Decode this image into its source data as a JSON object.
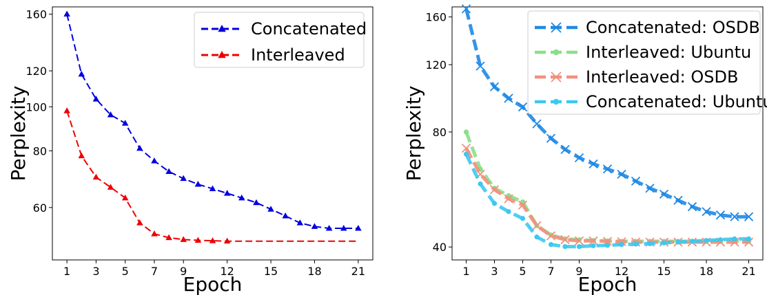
{
  "chart_data": [
    {
      "type": "line",
      "xlabel": "Epoch",
      "ylabel": "Perplexity",
      "yscale": "log",
      "xlim": [
        0.0,
        22.0
      ],
      "ylim": [
        46,
        166
      ],
      "xticks": [
        1,
        3,
        5,
        7,
        9,
        12,
        15,
        18,
        21
      ],
      "yticks": [
        60,
        80,
        100,
        120,
        160
      ],
      "legend_position": "top-right",
      "series": [
        {
          "name": "Concatenated",
          "color": "#0000dd",
          "marker": "triangle",
          "x": [
            1,
            2,
            3,
            4,
            5,
            6,
            7,
            8,
            9,
            10,
            11,
            12,
            13,
            14,
            15,
            16,
            17,
            18,
            19,
            20,
            21
          ],
          "values": [
            160,
            118,
            104,
            96,
            92,
            81,
            76,
            72,
            69.5,
            67.5,
            66,
            64.5,
            63,
            61.5,
            59.5,
            57.5,
            55.5,
            54.5,
            54,
            54,
            54
          ]
        },
        {
          "name": "Interleaved",
          "color": "#ee0000",
          "marker": "triangle",
          "x": [
            1,
            2,
            3,
            4,
            5,
            6,
            7,
            8,
            9,
            10,
            11,
            12,
            13,
            14,
            15,
            16,
            17,
            18,
            19,
            20,
            21
          ],
          "values": [
            98,
            78,
            70,
            66.5,
            63,
            55.5,
            52.5,
            51.5,
            51,
            50.8,
            50.7,
            50.6,
            50.6,
            50.6,
            50.6,
            50.6,
            50.6,
            50.6,
            50.6,
            50.6,
            50.6
          ]
        }
      ]
    },
    {
      "type": "line",
      "xlabel": "Epoch",
      "ylabel": "Perplexity",
      "yscale": "log",
      "xlim": [
        0.0,
        22.0
      ],
      "ylim": [
        37,
        170
      ],
      "xticks": [
        1,
        3,
        5,
        7,
        9,
        12,
        15,
        18,
        21
      ],
      "yticks": [
        40,
        80,
        120,
        160
      ],
      "legend_position": "top-right",
      "series": [
        {
          "name": "Concatenated: OSDB",
          "color": "#1e88e5",
          "marker": "x",
          "x": [
            1,
            2,
            3,
            4,
            5,
            6,
            7,
            8,
            9,
            10,
            11,
            12,
            13,
            14,
            15,
            16,
            17,
            18,
            19,
            20,
            21
          ],
          "values": [
            168,
            119,
            105,
            98,
            93,
            84,
            77,
            72,
            68.5,
            66,
            64,
            62,
            59.5,
            57,
            55,
            53,
            51,
            49.5,
            48.5,
            48,
            48
          ]
        },
        {
          "name": "Interleaved: Ubuntu",
          "color": "#88e088",
          "marker": "dot",
          "x": [
            1,
            2,
            3,
            4,
            5,
            6,
            7,
            8,
            9,
            10,
            11,
            12,
            13,
            14,
            15,
            16,
            17,
            18,
            19,
            20,
            21
          ],
          "values": [
            80,
            64,
            57,
            54.5,
            52.5,
            45.5,
            43,
            42,
            41.8,
            41.6,
            41.5,
            41.4,
            41.4,
            41.4,
            41.4,
            41.4,
            41.4,
            41.4,
            41.4,
            41.4,
            41.4
          ]
        },
        {
          "name": "Interleaved: OSDB",
          "color": "#f28f7d",
          "marker": "x",
          "x": [
            1,
            2,
            3,
            4,
            5,
            6,
            7,
            8,
            9,
            10,
            11,
            12,
            13,
            14,
            15,
            16,
            17,
            18,
            19,
            20,
            21
          ],
          "values": [
            72.5,
            62,
            56.5,
            53.5,
            51.5,
            45.5,
            42.8,
            41.8,
            41.5,
            41.5,
            41.4,
            41.3,
            41.2,
            41.2,
            41.2,
            41.2,
            41.2,
            41.2,
            41.2,
            41.2,
            41.2
          ]
        },
        {
          "name": "Concatenated: Ubuntu",
          "color": "#3cc8f0",
          "marker": "dot",
          "x": [
            1,
            2,
            3,
            4,
            5,
            6,
            7,
            8,
            9,
            10,
            11,
            12,
            13,
            14,
            15,
            16,
            17,
            18,
            19,
            20,
            21
          ],
          "values": [
            70,
            58.5,
            52,
            49.5,
            47.5,
            42.5,
            40.6,
            40.1,
            40.1,
            40.3,
            40.4,
            40.6,
            40.7,
            40.8,
            41,
            41.2,
            41.4,
            41.6,
            41.8,
            42,
            42
          ]
        }
      ]
    }
  ]
}
